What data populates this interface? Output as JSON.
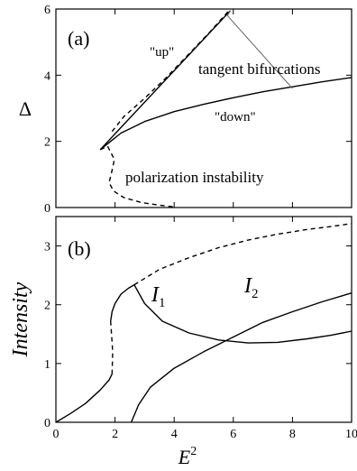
{
  "chart_data": [
    {
      "panel_label": "(a)",
      "type": "line",
      "ylabel": "Δ",
      "xlim": [
        0,
        10
      ],
      "ylim": [
        0,
        6
      ],
      "xticks": [
        0,
        2,
        4,
        6,
        8,
        10
      ],
      "yticks": [
        0,
        2,
        4,
        6
      ],
      "annotations": {
        "up": "\"up\"",
        "down": "\"down\"",
        "tangent": "tangent bifurcations",
        "polarization": "polarization instability"
      },
      "series": [
        {
          "style": "solid",
          "x": [
            1.5,
            5.9
          ],
          "y": [
            1.75,
            5.95
          ]
        },
        {
          "style": "dashed",
          "x": [
            1.9,
            2.3,
            3.0,
            3.7,
            4.4,
            5.2,
            5.9
          ],
          "y": [
            2.3,
            2.75,
            3.3,
            3.9,
            4.55,
            5.3,
            6.0
          ]
        },
        {
          "style": "solid",
          "x": [
            1.5,
            2.2,
            3.0,
            4.0,
            5.0,
            6.0,
            7.0,
            8.0,
            9.0,
            10.0
          ],
          "y": [
            1.75,
            2.25,
            2.6,
            2.9,
            3.12,
            3.32,
            3.5,
            3.65,
            3.8,
            3.93
          ]
        },
        {
          "style": "dashed",
          "x": [
            1.5,
            1.75,
            1.98,
            1.88,
            1.8,
            1.95,
            2.3,
            2.9,
            3.5,
            4.0
          ],
          "y": [
            1.75,
            1.85,
            1.45,
            1.05,
            0.75,
            0.5,
            0.3,
            0.15,
            0.07,
            0.02
          ]
        }
      ],
      "tangent_pointer": {
        "from": [
          5.8,
          5.8
        ],
        "to": [
          [
            5.9,
            5.95
          ],
          [
            8.0,
            3.6
          ]
        ]
      }
    },
    {
      "panel_label": "(b)",
      "type": "line",
      "ylabel": "Intensity",
      "xlabel": "E",
      "xlabel_superscript": "2",
      "xlim": [
        0,
        10
      ],
      "ylim": [
        0,
        3.5
      ],
      "xticks": [
        0,
        2,
        4,
        6,
        8,
        10
      ],
      "yticks": [
        0,
        1,
        2,
        3
      ],
      "series_labels": {
        "i1": "I",
        "i1_sub": "1",
        "i2": "I",
        "i2_sub": "2"
      },
      "series": [
        {
          "style": "solid",
          "x": [
            0,
            0.5,
            1.0,
            1.5,
            1.8,
            1.9
          ],
          "y": [
            0,
            0.15,
            0.32,
            0.55,
            0.72,
            0.82
          ]
        },
        {
          "style": "dashed",
          "x": [
            1.9,
            1.92,
            1.88,
            1.85
          ],
          "y": [
            0.82,
            1.2,
            1.5,
            1.72
          ]
        },
        {
          "style": "solid",
          "x": [
            1.85,
            1.9,
            2.0,
            2.2,
            2.45,
            2.65
          ],
          "y": [
            1.72,
            1.88,
            2.02,
            2.18,
            2.28,
            2.34
          ]
        },
        {
          "style": "solid",
          "x": [
            2.65,
            3.0,
            3.6,
            4.5,
            5.5,
            6.5,
            7.5,
            8.5,
            9.3,
            10.0
          ],
          "y": [
            2.34,
            2.02,
            1.72,
            1.52,
            1.4,
            1.35,
            1.36,
            1.42,
            1.48,
            1.55
          ]
        },
        {
          "style": "dashed",
          "x": [
            2.65,
            3.5,
            4.5,
            5.5,
            6.5,
            7.5,
            8.5,
            9.3,
            10.0
          ],
          "y": [
            2.34,
            2.6,
            2.8,
            2.97,
            3.1,
            3.2,
            3.28,
            3.33,
            3.38
          ]
        },
        {
          "style": "solid",
          "x": [
            2.55,
            2.8,
            3.2,
            4.0,
            5.0,
            6.0,
            7.0,
            8.0,
            9.0,
            10.0
          ],
          "y": [
            0,
            0.3,
            0.6,
            0.92,
            1.2,
            1.45,
            1.7,
            1.88,
            2.05,
            2.2
          ]
        }
      ]
    }
  ]
}
